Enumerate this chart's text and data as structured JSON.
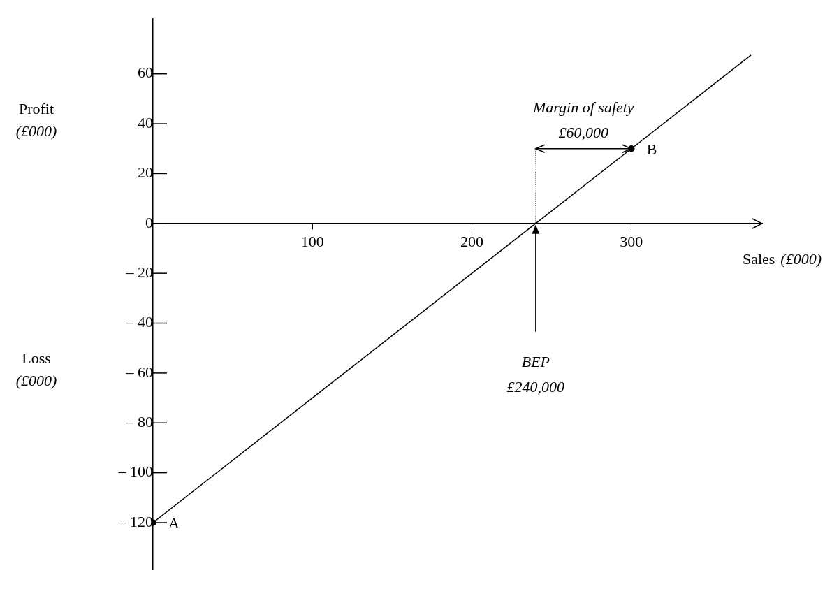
{
  "chart_data": {
    "type": "line",
    "xlabel": "Sales (£000)",
    "ylabel": "Profit (£000)",
    "xlim": [
      0,
      382
    ],
    "xticks": [
      100,
      200,
      300
    ],
    "ylim": [
      -139,
      82
    ],
    "yticks": [
      {
        "value": -120,
        "label": "– 120"
      },
      {
        "value": -100,
        "label": "– 100"
      },
      {
        "value": -80,
        "label": "– 80"
      },
      {
        "value": -60,
        "label": "– 60"
      },
      {
        "value": -40,
        "label": "– 40"
      },
      {
        "value": -20,
        "label": "– 20"
      },
      0,
      20,
      40,
      60
    ],
    "series": [
      {
        "color": "#000000",
        "marker": "none",
        "x": [
          0,
          240,
          300,
          375
        ],
        "values": [
          -120,
          0,
          30,
          67.5
        ]
      },
      {
        "type": "scatter",
        "color": "#000000",
        "marker": "circle",
        "x": [
          0,
          300
        ],
        "values": [
          -120,
          30
        ]
      }
    ],
    "ref_lines": [
      {
        "axis": "x",
        "value": 240,
        "label": "BEP £240,000"
      }
    ],
    "annotations": [
      {
        "text": "A",
        "x": 0,
        "y": -120
      },
      {
        "text": "B",
        "x": 300,
        "y": 30
      },
      "Margin of safety £60,000",
      "Loss (£000)"
    ],
    "grid": false,
    "legend": false
  }
}
